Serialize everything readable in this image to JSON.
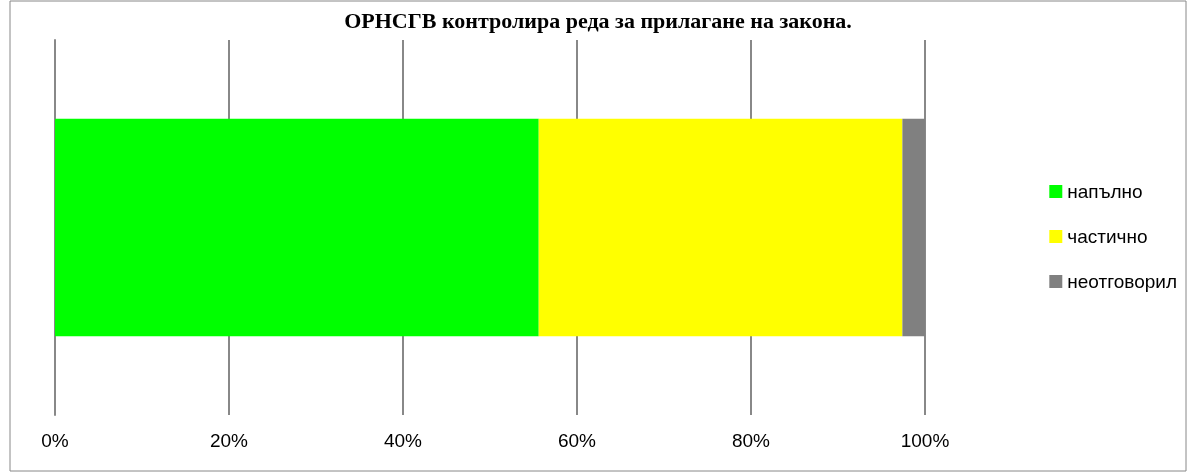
{
  "chart_data": {
    "type": "bar",
    "title": "ОРНСГВ контролира реда за прилагане на закона.",
    "orientation": "horizontal",
    "stacked": true,
    "categories": [
      null
    ],
    "series": [
      {
        "name": "напълно",
        "color": "#00ff00",
        "values": [
          55.6
        ]
      },
      {
        "name": "частично",
        "color": "#ffff00",
        "values": [
          41.8
        ]
      },
      {
        "name": "неотговорил",
        "color": "#808080",
        "values": [
          2.6
        ]
      }
    ],
    "xlim": [
      0,
      100
    ],
    "xticks": [
      {
        "value": 0,
        "label": "0%"
      },
      {
        "value": 20,
        "label": "20%"
      },
      {
        "value": 40,
        "label": "40%"
      },
      {
        "value": 60,
        "label": "60%"
      },
      {
        "value": 80,
        "label": "80%"
      },
      {
        "value": 100,
        "label": "100%"
      }
    ],
    "grid": "x",
    "legend": "right"
  }
}
